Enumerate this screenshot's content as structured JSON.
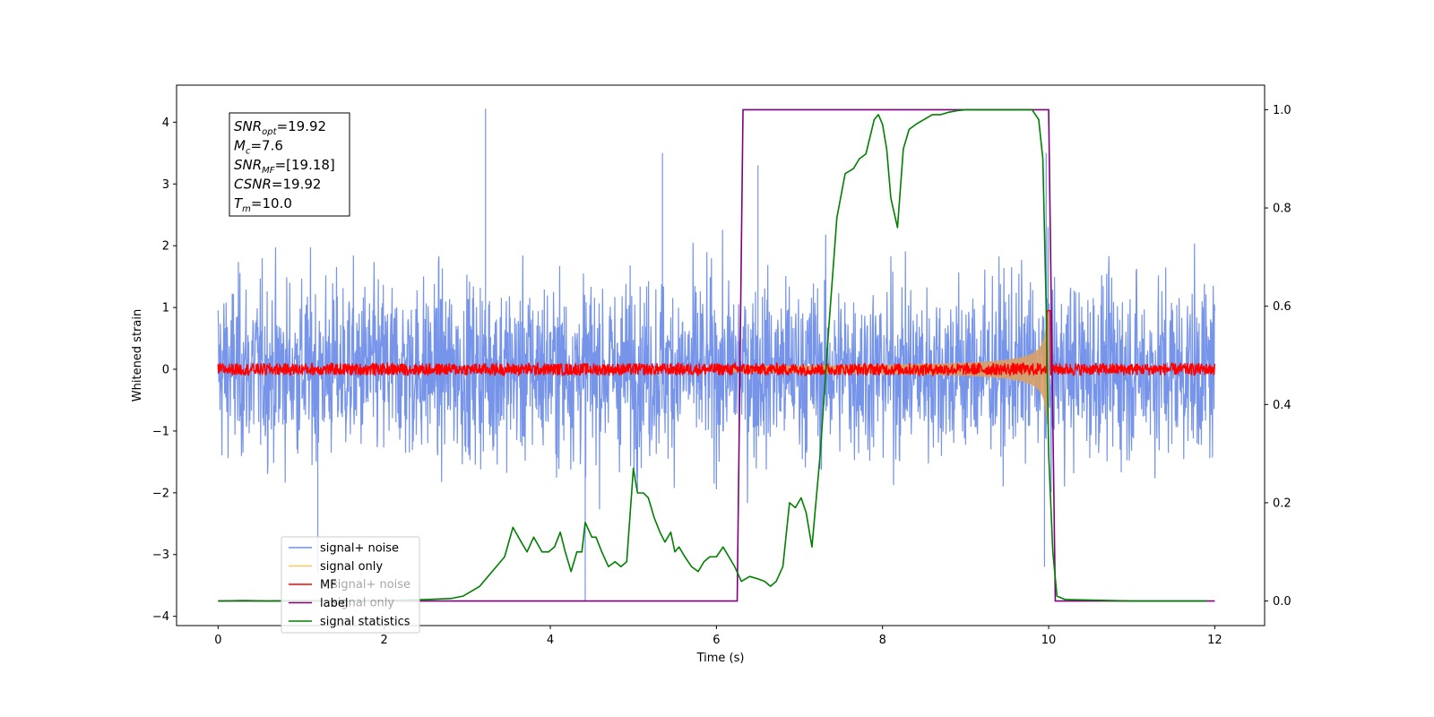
{
  "chart_data": {
    "type": "line",
    "xlabel": "Time (s)",
    "ylabel": "Whitened strain",
    "xlim": [
      -0.5,
      12.6
    ],
    "ylim_left": [
      -4.15,
      4.6
    ],
    "ylim_right": [
      -0.05,
      1.05
    ],
    "x_ticks": [
      0,
      2,
      4,
      6,
      8,
      10,
      12
    ],
    "x_tick_labels": [
      "0",
      "2",
      "4",
      "6",
      "8",
      "10",
      "12"
    ],
    "y_left_ticks": [
      4,
      3,
      2,
      1,
      0,
      -1,
      -2,
      -3,
      -4
    ],
    "y_left_tick_labels": [
      "4",
      "3",
      "2",
      "1",
      "0",
      "−1",
      "−2",
      "−3",
      "−4"
    ],
    "y_right_ticks": [
      1.0,
      0.8,
      0.6,
      0.4,
      0.2,
      0.0
    ],
    "y_right_tick_labels": [
      "1.0",
      "0.8",
      "0.6",
      "0.4",
      "0.2",
      "0.0"
    ],
    "annotation": {
      "lines": [
        {
          "base": "SNR",
          "sub": "opt",
          "value": "=19.92"
        },
        {
          "base": "M",
          "sub": "c",
          "value": "=7.6"
        },
        {
          "base": "SNR",
          "sub": "MF",
          "value": "=[19.18]"
        },
        {
          "base": "CSNR",
          "sub": "",
          "value": "=19.92"
        },
        {
          "base": "T",
          "sub": "m",
          "value": "=10.0"
        }
      ]
    },
    "legend": {
      "placement": "lower-left",
      "entries": [
        {
          "label": "signal+ noise",
          "color": "#6f8ee8"
        },
        {
          "label": "signal only",
          "color": "#ffc864"
        },
        {
          "label": "MF",
          "color": "#ff0000"
        },
        {
          "label": "label",
          "color": "#800080"
        },
        {
          "label": "signal statistics",
          "color": "#008000"
        }
      ],
      "ghost_entries": [
        "signal+ noise",
        "signal only"
      ]
    },
    "series": [
      {
        "name": "signal+ noise",
        "axis": "left",
        "color": "#6f8ee8",
        "x_range": [
          0,
          12
        ],
        "approx_envelope": {
          "typical_max": 2.2,
          "typical_min": -2.2,
          "peak_max": 4.22,
          "peak_min": -3.75
        }
      },
      {
        "name": "signal only",
        "axis": "left",
        "color": "#d9a066",
        "chirp": {
          "t_start": 6.2,
          "t_merge": 10.0,
          "amp_start": 0.05,
          "amp_end": 1.0
        }
      },
      {
        "name": "MF",
        "axis": "left",
        "color": "#ff0000",
        "x_range": [
          0,
          12
        ],
        "approx_amplitude": 0.1
      },
      {
        "name": "label",
        "axis": "right",
        "color": "#800080",
        "x": [
          0,
          6.25,
          6.32,
          10.0,
          10.08,
          12
        ],
        "y": [
          0,
          0,
          1,
          1,
          0,
          0
        ]
      },
      {
        "name": "signal statistics",
        "axis": "right",
        "color": "#008000",
        "x": [
          0,
          0.3,
          0.6,
          1.0,
          1.5,
          2.0,
          2.5,
          2.8,
          2.95,
          3.05,
          3.15,
          3.25,
          3.35,
          3.45,
          3.55,
          3.65,
          3.72,
          3.8,
          3.9,
          3.98,
          4.05,
          4.12,
          4.18,
          4.25,
          4.32,
          4.38,
          4.42,
          4.5,
          4.55,
          4.62,
          4.7,
          4.78,
          4.85,
          4.92,
          5.0,
          5.05,
          5.12,
          5.18,
          5.25,
          5.32,
          5.38,
          5.45,
          5.5,
          5.55,
          5.62,
          5.7,
          5.78,
          5.85,
          5.92,
          6.0,
          6.08,
          6.15,
          6.22,
          6.3,
          6.4,
          6.5,
          6.58,
          6.65,
          6.72,
          6.8,
          6.88,
          6.95,
          7.02,
          7.08,
          7.15,
          7.25,
          7.35,
          7.45,
          7.55,
          7.65,
          7.72,
          7.8,
          7.9,
          7.95,
          8.0,
          8.05,
          8.1,
          8.18,
          8.25,
          8.32,
          8.4,
          8.5,
          8.6,
          8.7,
          8.8,
          8.9,
          9.0,
          9.2,
          9.5,
          9.8,
          9.88,
          9.93,
          9.97,
          10.0,
          10.05,
          10.1,
          10.2,
          11.0,
          11.9
        ],
        "y": [
          0,
          0.001,
          0,
          0.001,
          0,
          0.001,
          0.003,
          0.005,
          0.01,
          0.02,
          0.03,
          0.05,
          0.07,
          0.09,
          0.15,
          0.12,
          0.1,
          0.13,
          0.1,
          0.1,
          0.11,
          0.14,
          0.1,
          0.06,
          0.1,
          0.1,
          0.16,
          0.13,
          0.13,
          0.1,
          0.07,
          0.08,
          0.07,
          0.08,
          0.27,
          0.22,
          0.22,
          0.21,
          0.17,
          0.14,
          0.12,
          0.14,
          0.1,
          0.11,
          0.09,
          0.07,
          0.06,
          0.08,
          0.09,
          0.09,
          0.11,
          0.09,
          0.07,
          0.04,
          0.05,
          0.045,
          0.04,
          0.03,
          0.04,
          0.07,
          0.2,
          0.19,
          0.21,
          0.18,
          0.11,
          0.3,
          0.55,
          0.78,
          0.87,
          0.88,
          0.9,
          0.91,
          0.98,
          0.99,
          0.97,
          0.92,
          0.82,
          0.76,
          0.92,
          0.96,
          0.97,
          0.98,
          0.99,
          0.99,
          0.995,
          0.998,
          1.0,
          1.0,
          1.0,
          1.0,
          0.98,
          0.9,
          0.6,
          0.3,
          0.1,
          0.01,
          0.003,
          0,
          0
        ]
      }
    ]
  }
}
